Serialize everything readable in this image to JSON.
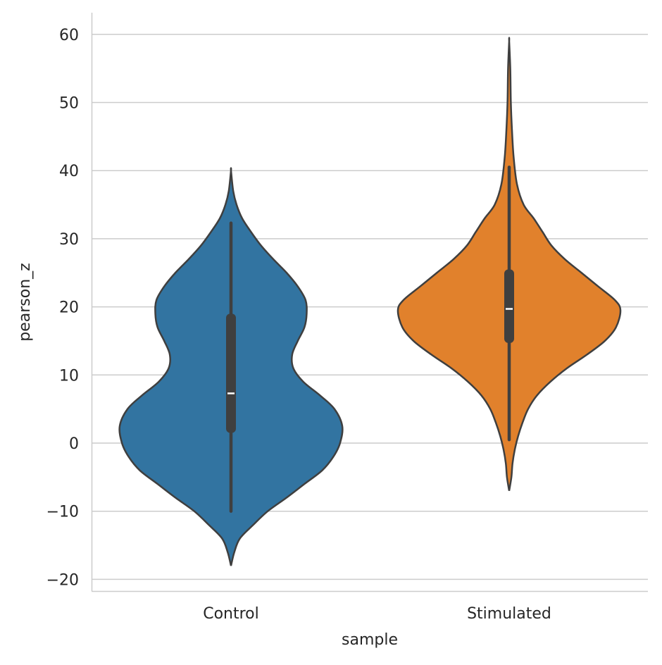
{
  "chart_data": {
    "type": "violin",
    "title": "",
    "xlabel": "sample",
    "ylabel": "pearson_z",
    "ylim": [
      -21.5,
      63.5
    ],
    "yticks": [
      -20,
      -10,
      0,
      10,
      20,
      30,
      40,
      50,
      60
    ],
    "ytick_labels": [
      "−20",
      "−10",
      "0",
      "10",
      "20",
      "30",
      "40",
      "50",
      "60"
    ],
    "grid": "horizontal",
    "categories": [
      "Control",
      "Stimulated"
    ],
    "series": [
      {
        "name": "Control",
        "color": "#3274a1",
        "range": [
          -18,
          40
        ],
        "box": {
          "whisker_low": -10,
          "q1": 1.5,
          "median": 7.3,
          "q3": 19,
          "whisker_high": 32.3
        },
        "density_profile": [
          [
            -18,
            0
          ],
          [
            -16,
            0.03
          ],
          [
            -14,
            0.08
          ],
          [
            -12,
            0.2
          ],
          [
            -10,
            0.33
          ],
          [
            -8,
            0.5
          ],
          [
            -6,
            0.66
          ],
          [
            -4,
            0.82
          ],
          [
            -2,
            0.92
          ],
          [
            0,
            0.98
          ],
          [
            2.5,
            1.0
          ],
          [
            5,
            0.93
          ],
          [
            7,
            0.8
          ],
          [
            9,
            0.65
          ],
          [
            11,
            0.56
          ],
          [
            13,
            0.55
          ],
          [
            15,
            0.6
          ],
          [
            17,
            0.66
          ],
          [
            19,
            0.68
          ],
          [
            21,
            0.67
          ],
          [
            23,
            0.6
          ],
          [
            25,
            0.5
          ],
          [
            27,
            0.38
          ],
          [
            29,
            0.27
          ],
          [
            31,
            0.18
          ],
          [
            33,
            0.1
          ],
          [
            35,
            0.05
          ],
          [
            37,
            0.02
          ],
          [
            40,
            0
          ]
        ]
      },
      {
        "name": "Stimulated",
        "color": "#e1812c",
        "range": [
          -7,
          59
        ],
        "box": {
          "whisker_low": 0.5,
          "q1": 14.7,
          "median": 19.7,
          "q3": 25.5,
          "whisker_high": 40.5
        },
        "density_profile": [
          [
            -7,
            0
          ],
          [
            -5,
            0.02
          ],
          [
            -3,
            0.03
          ],
          [
            -1,
            0.05
          ],
          [
            1,
            0.08
          ],
          [
            3,
            0.12
          ],
          [
            5,
            0.17
          ],
          [
            7,
            0.25
          ],
          [
            9,
            0.37
          ],
          [
            11,
            0.52
          ],
          [
            13,
            0.7
          ],
          [
            15,
            0.86
          ],
          [
            17,
            0.96
          ],
          [
            19.5,
            1.0
          ],
          [
            21,
            0.95
          ],
          [
            23,
            0.8
          ],
          [
            25,
            0.65
          ],
          [
            27,
            0.5
          ],
          [
            29,
            0.38
          ],
          [
            31,
            0.3
          ],
          [
            33,
            0.22
          ],
          [
            35,
            0.13
          ],
          [
            38,
            0.07
          ],
          [
            42,
            0.04
          ],
          [
            46,
            0.025
          ],
          [
            50,
            0.015
          ],
          [
            55,
            0.01
          ],
          [
            59,
            0
          ]
        ]
      }
    ]
  }
}
